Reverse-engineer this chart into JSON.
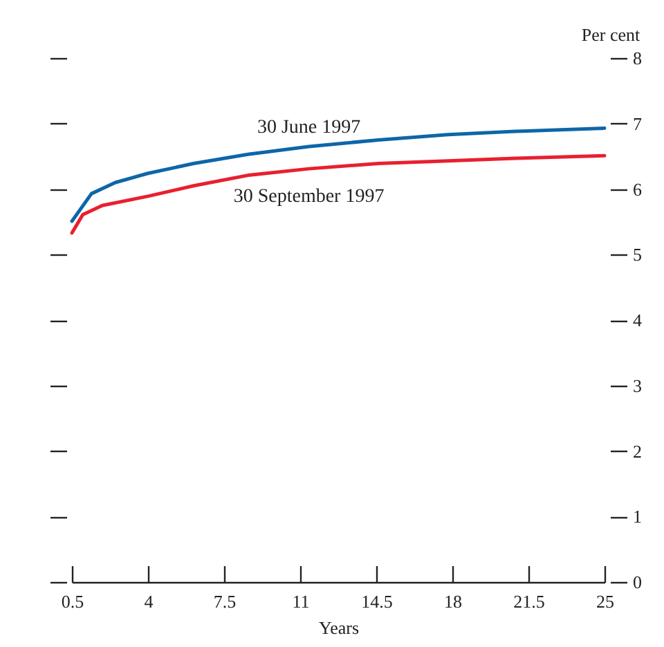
{
  "chart_data": {
    "type": "line",
    "xlabel": "Years",
    "ylabel": "Per cent",
    "xlim": [
      0.5,
      25
    ],
    "xticks": [
      0.5,
      4,
      7.5,
      11,
      14.5,
      18,
      21.5,
      25
    ],
    "ylim": [
      0,
      8
    ],
    "yticks": [
      0,
      1,
      2,
      3,
      4,
      5,
      6,
      7,
      8
    ],
    "grid": false,
    "legend": false,
    "series": [
      {
        "name": "30 June 1997",
        "color": "#0d66a8",
        "x": [
          0.5,
          1.4,
          2.5,
          4,
          6.1,
          8.6,
          11.4,
          14.6,
          17.8,
          20.9,
          25
        ],
        "values": [
          5.51,
          5.93,
          6.1,
          6.24,
          6.39,
          6.53,
          6.65,
          6.75,
          6.83,
          6.88,
          6.93
        ]
      },
      {
        "name": "30 September 1997",
        "color": "#e8202f",
        "x": [
          0.5,
          1,
          1.9,
          4,
          6.1,
          8.6,
          11.4,
          14.6,
          17.8,
          20.9,
          25
        ],
        "values": [
          5.33,
          5.61,
          5.75,
          5.89,
          6.05,
          6.21,
          6.31,
          6.39,
          6.43,
          6.47,
          6.51
        ]
      }
    ]
  }
}
